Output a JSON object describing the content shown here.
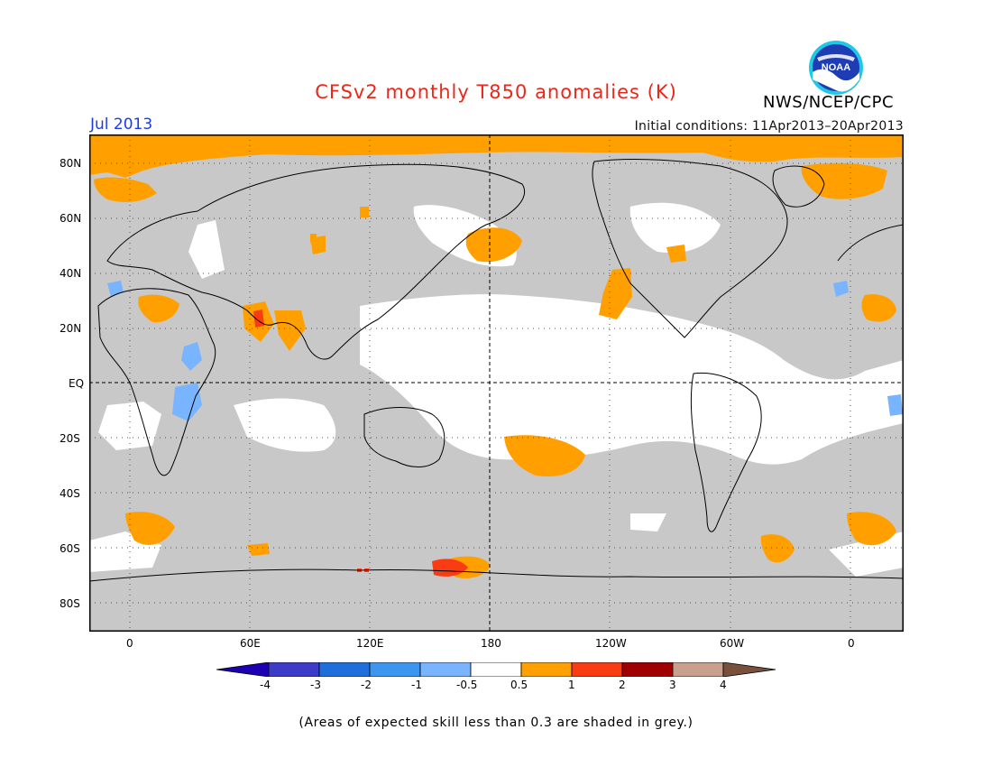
{
  "header": {
    "title": "CFSv2 monthly T850 anomalies (K)",
    "period": "Jul 2013",
    "initial_conditions": "Initial conditions: 11Apr2013–20Apr2013",
    "org": "NWS/NCEP/CPC",
    "logo_icon": "noaa-logo-icon",
    "logo_text": "NOAA"
  },
  "map": {
    "lat_labels": [
      "80N",
      "60N",
      "40N",
      "20N",
      "EQ",
      "20S",
      "40S",
      "60S",
      "80S"
    ],
    "lon_labels": [
      "0",
      "60E",
      "120E",
      "180",
      "120W",
      "60W",
      "0"
    ],
    "colors": {
      "frame": "#000000",
      "low_skill": "#c8c8c8",
      "ocean_no_signal": "#ffffff",
      "coast": "#000000",
      "warm_0_5_1": "#ffa000",
      "warm_1_2": "#fa3c14",
      "cool_m1_m0_5": "#78b4ff"
    }
  },
  "colorbar": {
    "labels": [
      "-4",
      "-3",
      "-2",
      "-1",
      "-0.5",
      "0.5",
      "1",
      "2",
      "3",
      "4"
    ],
    "colors": [
      "#1e00b4",
      "#3c3cc8",
      "#1e6edc",
      "#3c96f0",
      "#78b4ff",
      "#ffffff",
      "#ffa000",
      "#fa3c14",
      "#a00000",
      "#c8a08c",
      "#78503c"
    ]
  },
  "footnote": "(Areas of expected skill less than 0.3 are shaded in grey.)"
}
